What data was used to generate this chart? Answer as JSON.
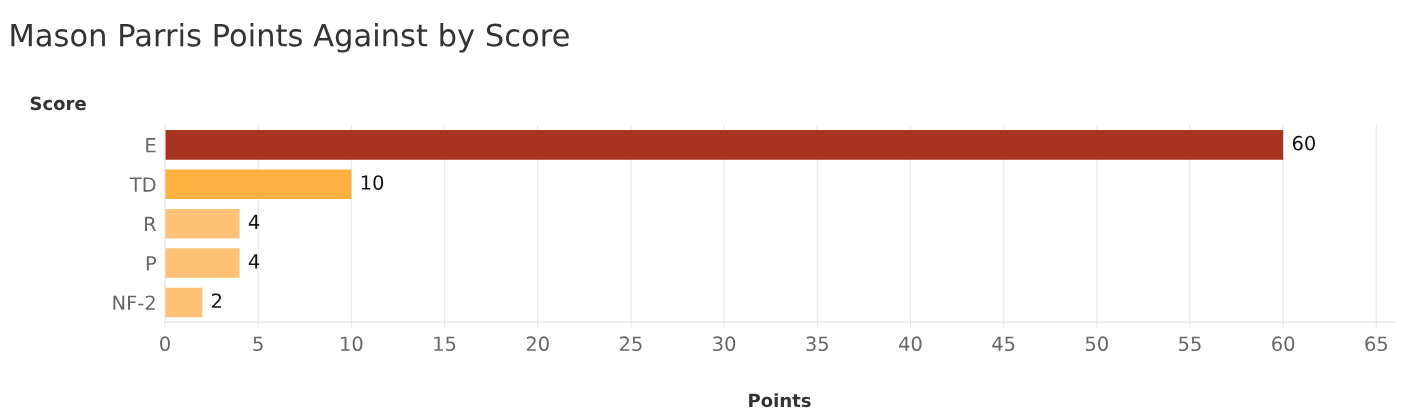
{
  "chart_data": {
    "type": "bar",
    "orientation": "horizontal",
    "title": "Mason Parris Points Against by Score",
    "xlabel": "Points",
    "ylabel": "Score",
    "categories": [
      "E",
      "TD",
      "R",
      "P",
      "NF-2"
    ],
    "values": [
      60,
      10,
      4,
      4,
      2
    ],
    "colors": [
      "#a9341f",
      "#ffb040",
      "#ffc175",
      "#ffc175",
      "#ffc175"
    ],
    "xlim": [
      0,
      66
    ],
    "xticks": [
      0,
      5,
      10,
      15,
      20,
      25,
      30,
      35,
      40,
      45,
      50,
      55,
      60,
      65
    ],
    "grid": "x",
    "data_labels": true
  }
}
